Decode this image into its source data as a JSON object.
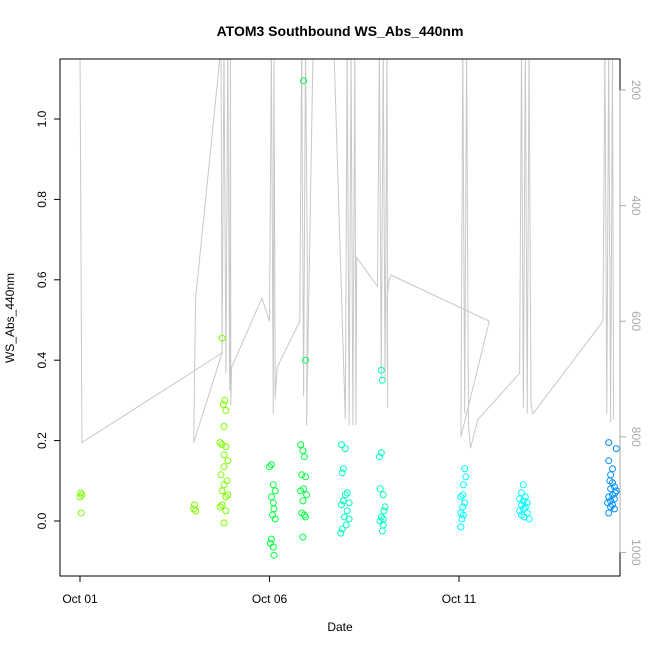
{
  "chart_data": {
    "type": "scatter",
    "title": "ATOM3 Southbound WS_Abs_440nm",
    "xlabel": "Date",
    "ylabel": "WS_Abs_440nm",
    "x_unit": "days",
    "xlim": [
      0,
      14.5
    ],
    "ylim": [
      -0.13,
      1.15
    ],
    "x_ticks": [
      {
        "value": 0,
        "label": "Oct 01"
      },
      {
        "value": 5,
        "label": "Oct 06"
      },
      {
        "value": 10,
        "label": "Oct 11"
      }
    ],
    "y_ticks": [
      0.0,
      0.2,
      0.4,
      0.6,
      0.8,
      1.0
    ],
    "y_tick_labels": [
      "0.0",
      "0.2",
      "0.4",
      "0.6",
      "0.8",
      "1.0"
    ],
    "right_axis": {
      "label": "",
      "reversed": true,
      "ylim": [
        125,
        1035
      ],
      "ticks": [
        200,
        400,
        600,
        800,
        1000
      ],
      "tick_labels": [
        "200",
        "400",
        "600",
        "800",
        "1000"
      ],
      "color": "#aaaaaa"
    },
    "grid": false,
    "legend": "none",
    "line_color": "#c8c8c8",
    "point_colors": [
      "#7cfc00",
      "#00ff40",
      "#00ffc0",
      "#00ffff",
      "#0090ff"
    ],
    "series": [
      {
        "values": [
          [
            0.0,
            0.06
          ],
          [
            0.02,
            0.07
          ],
          [
            0.05,
            0.065
          ],
          [
            0.03,
            0.02
          ],
          [
            3.0,
            0.03
          ],
          [
            3.02,
            0.04
          ],
          [
            3.05,
            0.025
          ],
          [
            3.75,
            0.455
          ],
          [
            3.78,
            0.29
          ],
          [
            3.82,
            0.3
          ],
          [
            3.85,
            0.275
          ],
          [
            3.8,
            0.235
          ],
          [
            3.7,
            0.195
          ],
          [
            3.75,
            0.19
          ],
          [
            3.85,
            0.185
          ],
          [
            3.8,
            0.165
          ],
          [
            3.9,
            0.15
          ],
          [
            3.8,
            0.135
          ],
          [
            3.72,
            0.115
          ],
          [
            3.88,
            0.1
          ],
          [
            3.8,
            0.09
          ],
          [
            3.75,
            0.075
          ],
          [
            3.85,
            0.06
          ],
          [
            3.9,
            0.065
          ],
          [
            3.7,
            0.035
          ],
          [
            3.75,
            0.04
          ],
          [
            3.85,
            0.025
          ],
          [
            3.8,
            -0.005
          ]
        ]
      },
      {
        "values": [
          [
            5.0,
            0.135
          ],
          [
            5.05,
            0.14
          ],
          [
            5.1,
            0.09
          ],
          [
            5.15,
            0.075
          ],
          [
            5.05,
            0.06
          ],
          [
            5.1,
            0.045
          ],
          [
            5.12,
            0.03
          ],
          [
            5.08,
            0.015
          ],
          [
            5.15,
            0.005
          ],
          [
            5.05,
            -0.045
          ],
          [
            5.02,
            -0.055
          ],
          [
            5.1,
            -0.065
          ],
          [
            5.12,
            -0.085
          ],
          [
            5.9,
            1.095
          ],
          [
            5.95,
            0.4
          ],
          [
            5.82,
            0.19
          ],
          [
            5.88,
            0.175
          ],
          [
            5.92,
            0.16
          ],
          [
            5.85,
            0.115
          ],
          [
            5.95,
            0.11
          ],
          [
            5.82,
            0.075
          ],
          [
            5.9,
            0.08
          ],
          [
            5.98,
            0.065
          ],
          [
            5.88,
            0.05
          ],
          [
            5.85,
            0.02
          ],
          [
            5.92,
            0.015
          ],
          [
            5.95,
            0.01
          ],
          [
            5.88,
            -0.04
          ]
        ]
      },
      {
        "values": [
          [
            6.9,
            0.19
          ],
          [
            7.0,
            0.18
          ],
          [
            6.95,
            0.13
          ],
          [
            6.92,
            0.12
          ],
          [
            7.05,
            0.07
          ],
          [
            7.0,
            0.065
          ],
          [
            6.95,
            0.05
          ],
          [
            7.1,
            0.045
          ],
          [
            6.9,
            0.04
          ],
          [
            7.05,
            0.025
          ],
          [
            6.98,
            0.01
          ],
          [
            7.1,
            0.005
          ],
          [
            6.92,
            -0.02
          ],
          [
            7.02,
            -0.01
          ],
          [
            6.88,
            -0.03
          ],
          [
            7.95,
            0.375
          ],
          [
            7.98,
            0.35
          ],
          [
            7.95,
            0.17
          ],
          [
            7.9,
            0.16
          ],
          [
            7.92,
            0.08
          ],
          [
            8.0,
            0.065
          ],
          [
            8.05,
            0.035
          ],
          [
            8.02,
            0.025
          ],
          [
            7.95,
            0.01
          ],
          [
            8.0,
            0.005
          ],
          [
            7.92,
            0.0
          ],
          [
            8.0,
            -0.01
          ],
          [
            7.98,
            -0.025
          ]
        ]
      },
      {
        "values": [
          [
            10.15,
            0.13
          ],
          [
            10.18,
            0.11
          ],
          [
            10.12,
            0.09
          ],
          [
            10.1,
            0.065
          ],
          [
            10.05,
            0.06
          ],
          [
            10.15,
            0.045
          ],
          [
            10.1,
            0.035
          ],
          [
            10.05,
            0.02
          ],
          [
            10.12,
            0.015
          ],
          [
            10.08,
            0.005
          ],
          [
            10.05,
            -0.015
          ],
          [
            11.7,
            0.09
          ],
          [
            11.65,
            0.07
          ],
          [
            11.75,
            0.06
          ],
          [
            11.6,
            0.055
          ],
          [
            11.7,
            0.05
          ],
          [
            11.8,
            0.045
          ],
          [
            11.65,
            0.04
          ],
          [
            11.75,
            0.035
          ],
          [
            11.7,
            0.03
          ],
          [
            11.6,
            0.025
          ],
          [
            11.8,
            0.02
          ],
          [
            11.65,
            0.015
          ],
          [
            11.72,
            0.01
          ],
          [
            11.85,
            0.005
          ]
        ]
      },
      {
        "values": [
          [
            13.95,
            0.195
          ],
          [
            14.15,
            0.18
          ],
          [
            13.95,
            0.15
          ],
          [
            14.05,
            0.13
          ],
          [
            14.0,
            0.115
          ],
          [
            13.98,
            0.1
          ],
          [
            14.05,
            0.095
          ],
          [
            14.1,
            0.085
          ],
          [
            14.0,
            0.08
          ],
          [
            14.15,
            0.075
          ],
          [
            14.12,
            0.07
          ],
          [
            14.05,
            0.065
          ],
          [
            13.95,
            0.06
          ],
          [
            14.1,
            0.055
          ],
          [
            14.0,
            0.05
          ],
          [
            13.92,
            0.045
          ],
          [
            14.05,
            0.04
          ],
          [
            14.0,
            0.035
          ],
          [
            14.1,
            0.03
          ],
          [
            13.95,
            0.02
          ]
        ]
      }
    ],
    "altitude_line": [
      [
        0.0,
        125
      ],
      [
        0.05,
        810
      ],
      [
        3.75,
        655
      ],
      [
        3.0,
        810
      ],
      [
        3.05,
        560
      ],
      [
        3.72,
        125
      ],
      [
        3.75,
        655
      ],
      [
        3.8,
        125
      ],
      [
        3.85,
        690
      ],
      [
        3.9,
        125
      ],
      [
        3.95,
        720
      ],
      [
        3.97,
        125
      ],
      [
        3.98,
        745
      ],
      [
        4.0,
        680
      ],
      [
        4.8,
        560
      ],
      [
        5.0,
        600
      ],
      [
        5.05,
        125
      ],
      [
        5.1,
        760
      ],
      [
        5.12,
        125
      ],
      [
        5.15,
        735
      ],
      [
        5.2,
        680
      ],
      [
        5.8,
        600
      ],
      [
        5.85,
        125
      ],
      [
        5.9,
        730
      ],
      [
        5.95,
        125
      ],
      [
        6.0,
        510
      ],
      [
        5.98,
        780
      ],
      [
        6.15,
        125
      ],
      [
        6.7,
        125
      ],
      [
        7.0,
        770
      ],
      [
        7.05,
        125
      ],
      [
        7.1,
        780
      ],
      [
        7.15,
        125
      ],
      [
        7.2,
        780
      ],
      [
        7.25,
        125
      ],
      [
        7.28,
        780
      ],
      [
        7.3,
        490
      ],
      [
        7.85,
        540
      ],
      [
        7.9,
        125
      ],
      [
        7.95,
        700
      ],
      [
        8.0,
        125
      ],
      [
        8.05,
        700
      ],
      [
        8.1,
        125
      ],
      [
        8.12,
        750
      ],
      [
        8.12,
        740
      ],
      [
        8.1,
        560
      ],
      [
        8.15,
        530
      ],
      [
        8.2,
        520
      ],
      [
        10.8,
        600
      ],
      [
        10.05,
        800
      ],
      [
        10.1,
        125
      ],
      [
        10.15,
        760
      ],
      [
        10.2,
        125
      ],
      [
        10.25,
        780
      ],
      [
        10.3,
        820
      ],
      [
        10.5,
        770
      ],
      [
        11.6,
        690
      ],
      [
        11.65,
        125
      ],
      [
        11.7,
        750
      ],
      [
        11.75,
        125
      ],
      [
        11.8,
        760
      ],
      [
        11.85,
        125
      ],
      [
        11.9,
        745
      ],
      [
        11.95,
        760
      ],
      [
        13.8,
        600
      ],
      [
        13.85,
        125
      ],
      [
        13.9,
        760
      ],
      [
        13.95,
        125
      ],
      [
        14.0,
        775
      ],
      [
        14.05,
        125
      ],
      [
        14.08,
        770
      ]
    ]
  }
}
